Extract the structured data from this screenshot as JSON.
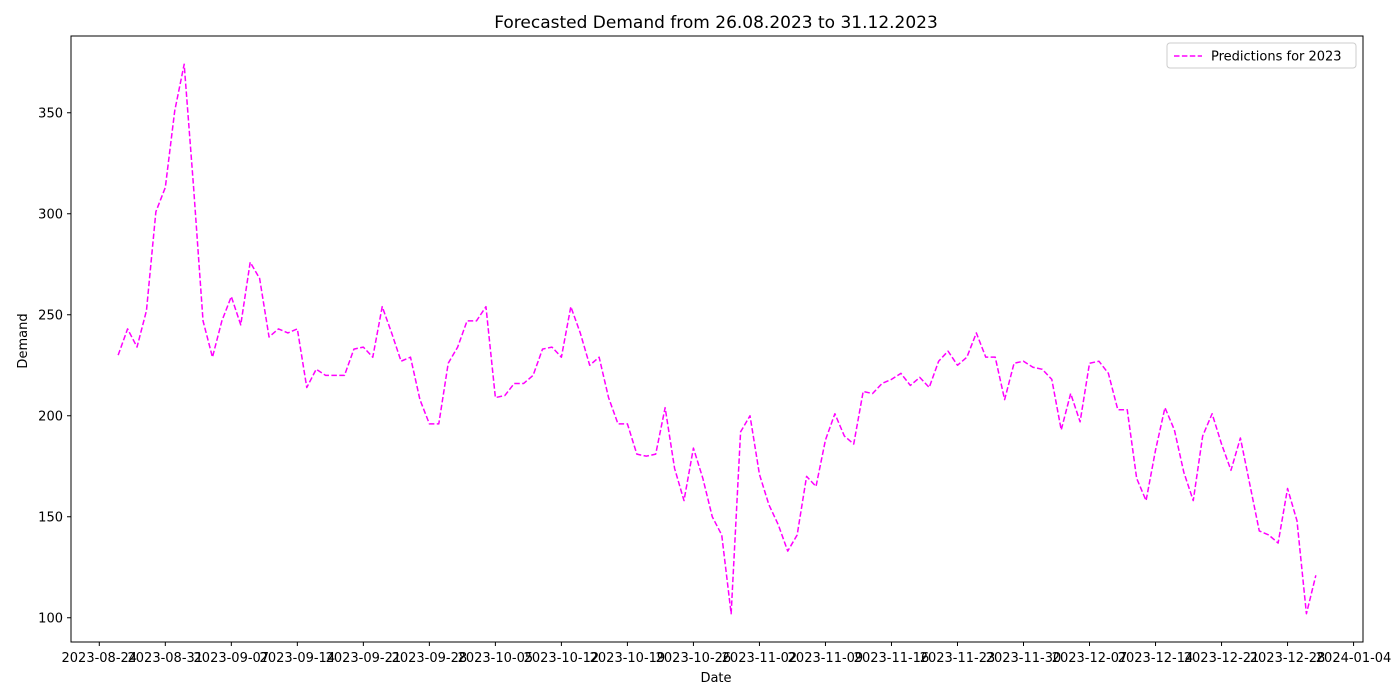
{
  "chart_data": {
    "type": "line",
    "title": "Forecasted Demand from 26.08.2023 to 31.12.2023",
    "xlabel": "Date",
    "ylabel": "Demand",
    "xlim": [
      "2023-08-21",
      "2024-01-05"
    ],
    "ylim": [
      88,
      388
    ],
    "x_ticks": [
      "2023-08-24",
      "2023-08-31",
      "2023-09-07",
      "2023-09-14",
      "2023-09-21",
      "2023-09-28",
      "2023-10-05",
      "2023-10-12",
      "2023-10-19",
      "2023-10-26",
      "2023-11-02",
      "2023-11-09",
      "2023-11-16",
      "2023-11-23",
      "2023-11-30",
      "2023-12-07",
      "2023-12-14",
      "2023-12-21",
      "2023-12-28",
      "2024-01-04"
    ],
    "y_ticks": [
      100,
      150,
      200,
      250,
      300,
      350
    ],
    "grid": false,
    "legend": "top-right",
    "series": [
      {
        "name": "Predictions for 2023",
        "color": "#ff00ff",
        "line_style": "dashed",
        "x": [
          "2023-08-26",
          "2023-08-27",
          "2023-08-28",
          "2023-08-29",
          "2023-08-30",
          "2023-08-31",
          "2023-09-01",
          "2023-09-02",
          "2023-09-03",
          "2023-09-04",
          "2023-09-05",
          "2023-09-06",
          "2023-09-07",
          "2023-09-08",
          "2023-09-09",
          "2023-09-10",
          "2023-09-11",
          "2023-09-12",
          "2023-09-13",
          "2023-09-14",
          "2023-09-15",
          "2023-09-16",
          "2023-09-17",
          "2023-09-18",
          "2023-09-19",
          "2023-09-20",
          "2023-09-21",
          "2023-09-22",
          "2023-09-23",
          "2023-09-24",
          "2023-09-25",
          "2023-09-26",
          "2023-09-27",
          "2023-09-28",
          "2023-09-29",
          "2023-09-30",
          "2023-10-01",
          "2023-10-02",
          "2023-10-03",
          "2023-10-04",
          "2023-10-05",
          "2023-10-06",
          "2023-10-07",
          "2023-10-08",
          "2023-10-09",
          "2023-10-10",
          "2023-10-11",
          "2023-10-12",
          "2023-10-13",
          "2023-10-14",
          "2023-10-15",
          "2023-10-16",
          "2023-10-17",
          "2023-10-18",
          "2023-10-19",
          "2023-10-20",
          "2023-10-21",
          "2023-10-22",
          "2023-10-23",
          "2023-10-24",
          "2023-10-25",
          "2023-10-26",
          "2023-10-27",
          "2023-10-28",
          "2023-10-29",
          "2023-10-30",
          "2023-10-31",
          "2023-11-01",
          "2023-11-02",
          "2023-11-03",
          "2023-11-04",
          "2023-11-05",
          "2023-11-06",
          "2023-11-07",
          "2023-11-08",
          "2023-11-09",
          "2023-11-10",
          "2023-11-11",
          "2023-11-12",
          "2023-11-13",
          "2023-11-14",
          "2023-11-15",
          "2023-11-16",
          "2023-11-17",
          "2023-11-18",
          "2023-11-19",
          "2023-11-20",
          "2023-11-21",
          "2023-11-22",
          "2023-11-23",
          "2023-11-24",
          "2023-11-25",
          "2023-11-26",
          "2023-11-27",
          "2023-11-28",
          "2023-11-29",
          "2023-11-30",
          "2023-12-01",
          "2023-12-02",
          "2023-12-03",
          "2023-12-04",
          "2023-12-05",
          "2023-12-06",
          "2023-12-07",
          "2023-12-08",
          "2023-12-09",
          "2023-12-10",
          "2023-12-11",
          "2023-12-12",
          "2023-12-13",
          "2023-12-14",
          "2023-12-15",
          "2023-12-16",
          "2023-12-17",
          "2023-12-18",
          "2023-12-19",
          "2023-12-20",
          "2023-12-21",
          "2023-12-22",
          "2023-12-23",
          "2023-12-24",
          "2023-12-25",
          "2023-12-26",
          "2023-12-27",
          "2023-12-28",
          "2023-12-29",
          "2023-12-30",
          "2023-12-31"
        ],
        "values": [
          230,
          243,
          234,
          252,
          301,
          313,
          351,
          374,
          313,
          247,
          229,
          247,
          259,
          245,
          276,
          268,
          239,
          243,
          241,
          243,
          214,
          223,
          220,
          220,
          220,
          233,
          234,
          229,
          254,
          241,
          227,
          229,
          208,
          196,
          196,
          226,
          234,
          247,
          247,
          254,
          209,
          210,
          216,
          216,
          220,
          233,
          234,
          229,
          254,
          241,
          225,
          229,
          209,
          196,
          196,
          181,
          180,
          181,
          204,
          174,
          158,
          184,
          169,
          150,
          141,
          102,
          192,
          200,
          171,
          156,
          146,
          133,
          141,
          170,
          165,
          188,
          201,
          190,
          186,
          212,
          211,
          216,
          218,
          221,
          215,
          219,
          214,
          227,
          232,
          225,
          229,
          241,
          229,
          229,
          208,
          226,
          227,
          224,
          223,
          218,
          193,
          211,
          197,
          226,
          227,
          221,
          203,
          203,
          169,
          158,
          183,
          204,
          193,
          172,
          158,
          190,
          201,
          186,
          173,
          189,
          166,
          143,
          141,
          137,
          164,
          148,
          102,
          121
        ]
      }
    ]
  }
}
